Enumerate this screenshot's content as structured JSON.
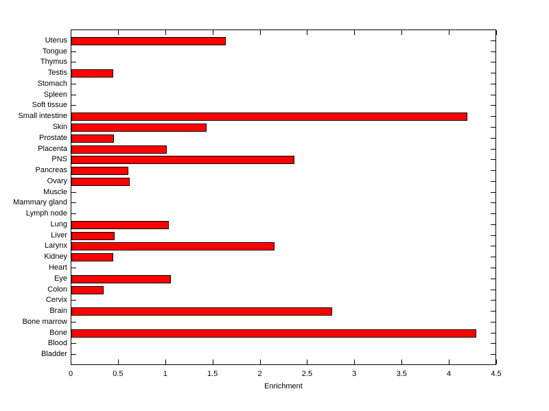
{
  "figure": {
    "background": "#ffffff",
    "axis_color": "#000000"
  },
  "chart_data": {
    "type": "bar",
    "orientation": "horizontal",
    "title": "",
    "xlabel": "Enrichment",
    "ylabel": "",
    "xlim": [
      0,
      4.5
    ],
    "xtick_values": [
      0,
      0.5,
      1,
      1.5,
      2,
      2.5,
      3,
      3.5,
      4,
      4.5
    ],
    "xtick_labels": [
      "0",
      "0.5",
      "1",
      "1.5",
      "2",
      "2.5",
      "3",
      "3.5",
      "4",
      "4.5"
    ],
    "grid": false,
    "legend": null,
    "bar_color": "#ff0000",
    "bar_edge_color": "#000000",
    "categories": [
      "Uterus",
      "Tongue",
      "Thymus",
      "Testis",
      "Stomach",
      "Spleen",
      "Soft tissue",
      "Small intestine",
      "Skin",
      "Prostate",
      "Placenta",
      "PNS",
      "Pancreas",
      "Ovary",
      "Muscle",
      "Mammary gland",
      "Lymph node",
      "Lung",
      "Liver",
      "Larynx",
      "Kidney",
      "Heart",
      "Eye",
      "Colon",
      "Cervix",
      "Brain",
      "Bone marrow",
      "Bone",
      "Blood",
      "Bladder"
    ],
    "values": [
      1.63,
      0,
      0,
      0.44,
      0,
      0,
      0,
      4.19,
      1.43,
      0.45,
      1.01,
      2.36,
      0.6,
      0.62,
      0,
      0,
      0,
      1.03,
      0.46,
      2.15,
      0.44,
      0,
      1.05,
      0.34,
      0,
      2.76,
      0,
      4.28,
      0,
      0
    ]
  }
}
